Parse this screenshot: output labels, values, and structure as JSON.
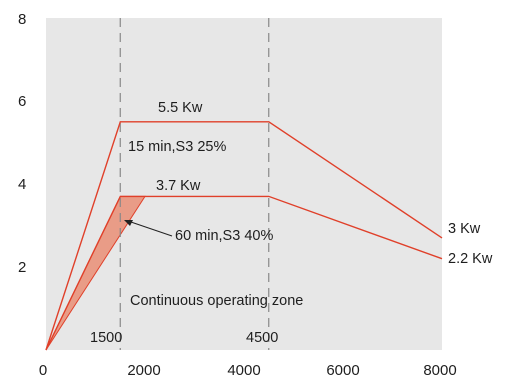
{
  "chart_data": {
    "type": "line",
    "title": "",
    "xlabel": "",
    "ylabel": "",
    "xlim": [
      0,
      8000
    ],
    "ylim": [
      0,
      8
    ],
    "x_ticks": [
      "0",
      "2000",
      "4000",
      "6000",
      "8000"
    ],
    "y_ticks": [
      "2",
      "4",
      "6",
      "8"
    ],
    "grid": false,
    "background_color": "#e7e7e7",
    "line_color": "#e0402a",
    "shade_color": "#e99c87",
    "series": [
      {
        "label": "5.5 Kw",
        "end_label": "3 Kw",
        "points": [
          [
            0,
            0
          ],
          [
            1500,
            5.5
          ],
          [
            4500,
            5.5
          ],
          [
            8000,
            2.7
          ]
        ]
      },
      {
        "label": "3.7 Kw",
        "end_label": "2.2 Kw",
        "points": [
          [
            0,
            0
          ],
          [
            1500,
            3.7
          ],
          [
            4500,
            3.7
          ],
          [
            8000,
            2.2
          ]
        ]
      }
    ],
    "shaded_region": {
      "points": [
        [
          0,
          0
        ],
        [
          1500,
          3.7
        ],
        [
          2000,
          3.7
        ]
      ]
    },
    "reference_lines": [
      {
        "x": 1500,
        "label": "1500"
      },
      {
        "x": 4500,
        "label": "4500"
      }
    ],
    "annotations": {
      "s3_25": "15 min,S3 25%",
      "s3_40": "60 min,S3 40%",
      "continuous": "Continuous operating zone"
    }
  }
}
